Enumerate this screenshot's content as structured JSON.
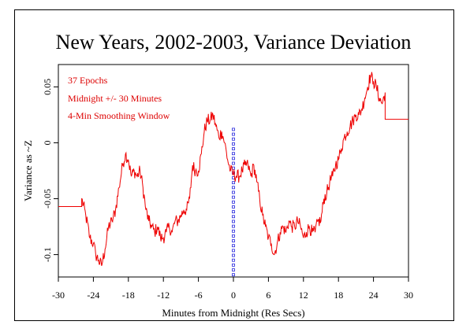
{
  "chart_data": {
    "type": "line",
    "title": "New Years, 2002-2003, Variance Deviation",
    "xlabel": "Minutes from Midnight (Res Secs)",
    "ylabel": "Variance as ~Z",
    "xlim": [
      -30,
      30
    ],
    "ylim": [
      -0.12,
      0.07
    ],
    "xticks": [
      -30,
      -24,
      -18,
      -12,
      -6,
      0,
      6,
      12,
      18,
      24,
      30
    ],
    "yticks": [
      -0.1,
      -0.05,
      0,
      0.05
    ],
    "ytick_labels": [
      "-0.1",
      "-0.05",
      "0",
      "0.05"
    ],
    "grid": false,
    "annotations": [
      "37 Epochs",
      "Midnight +/- 30 Minutes",
      "4-Min Smoothing Window"
    ],
    "colors": {
      "series": "#ee0000",
      "annotation": "#dd0000",
      "midnight_marker": "#2222dd"
    },
    "series": [
      {
        "values_x": [
          -30,
          -26,
          -26,
          -25.3,
          -24.6,
          -24,
          -23.6,
          -23.1,
          -22.6,
          -22,
          -21.4,
          -20.8,
          -20.2,
          -19.6,
          -19,
          -18.5,
          -18,
          -17.5,
          -17,
          -16.5,
          -16,
          -15.5,
          -15,
          -14.5,
          -14,
          -13.5,
          -13,
          -12.5,
          -12,
          -11.5,
          -11,
          -10.5,
          -10,
          -9.5,
          -9,
          -8.5,
          -8,
          -7.5,
          -7,
          -6.5,
          -6,
          -5.5,
          -5,
          -4.5,
          -4,
          -3.5,
          -3,
          -2.5,
          -2,
          -1.5,
          -1,
          -0.5,
          0,
          0.5,
          1,
          1.5,
          2,
          2.5,
          3,
          3.5,
          4,
          4.5,
          5,
          5.5,
          6,
          6.5,
          7,
          7.5,
          8,
          8.5,
          9,
          9.5,
          10,
          10.5,
          11,
          11.5,
          12,
          12.5,
          13,
          13.5,
          14,
          14.5,
          15,
          15.5,
          16,
          16.5,
          17,
          17.5,
          18,
          18.5,
          19,
          19.5,
          20,
          20.5,
          21,
          21.5,
          22,
          22.5,
          23,
          23.5,
          24,
          24.5,
          25,
          25.5,
          26,
          26,
          30
        ],
        "values_y": [
          -0.057,
          -0.057,
          -0.05,
          -0.065,
          -0.085,
          -0.09,
          -0.1,
          -0.105,
          -0.11,
          -0.095,
          -0.075,
          -0.07,
          -0.06,
          -0.04,
          -0.02,
          -0.01,
          -0.015,
          -0.03,
          -0.025,
          -0.03,
          -0.025,
          -0.04,
          -0.06,
          -0.07,
          -0.075,
          -0.08,
          -0.075,
          -0.085,
          -0.085,
          -0.08,
          -0.075,
          -0.08,
          -0.07,
          -0.07,
          -0.065,
          -0.06,
          -0.06,
          -0.05,
          -0.02,
          -0.025,
          -0.025,
          -0.01,
          0.01,
          0.02,
          0.02,
          0.025,
          0.015,
          0.005,
          0.01,
          0.0,
          -0.015,
          -0.025,
          -0.028,
          -0.03,
          -0.03,
          -0.025,
          -0.02,
          -0.02,
          -0.03,
          -0.02,
          -0.035,
          -0.05,
          -0.065,
          -0.075,
          -0.085,
          -0.09,
          -0.1,
          -0.09,
          -0.08,
          -0.075,
          -0.08,
          -0.07,
          -0.075,
          -0.075,
          -0.07,
          -0.075,
          -0.085,
          -0.08,
          -0.075,
          -0.08,
          -0.08,
          -0.07,
          -0.07,
          -0.05,
          -0.045,
          -0.035,
          -0.03,
          -0.02,
          -0.015,
          -0.005,
          0.005,
          0.01,
          0.015,
          0.02,
          0.025,
          0.025,
          0.03,
          0.04,
          0.05,
          0.06,
          0.055,
          0.05,
          0.04,
          0.035,
          0.045,
          0.021,
          0.021
        ]
      }
    ],
    "midnight_marker": {
      "x": 0,
      "y_from": -0.118,
      "y_to": 0.012
    }
  }
}
